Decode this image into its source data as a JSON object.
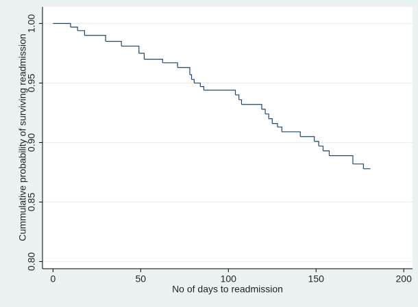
{
  "chart_data": {
    "type": "step",
    "xlabel": "No of days to readmission",
    "ylabel": "Cummulative probability of surviving readmission",
    "x": [
      0,
      10,
      14,
      18,
      30,
      39,
      49,
      52,
      62.5,
      71,
      78,
      79,
      80.5,
      84,
      86,
      104,
      106,
      107.5,
      119,
      121,
      123,
      125,
      128,
      130.5,
      141,
      149,
      151.5,
      154,
      157.5,
      171,
      177,
      181
    ],
    "values": [
      1.0,
      0.997,
      0.994,
      0.99,
      0.985,
      0.981,
      0.975,
      0.97,
      0.967,
      0.963,
      0.957,
      0.953,
      0.95,
      0.947,
      0.944,
      0.94,
      0.936,
      0.932,
      0.928,
      0.924,
      0.92,
      0.916,
      0.913,
      0.909,
      0.905,
      0.901,
      0.897,
      0.893,
      0.889,
      0.882,
      0.878,
      0.878
    ],
    "color": "#1a476f",
    "xlim": [
      -6,
      205
    ],
    "xticks": [
      0,
      50,
      100,
      150,
      200
    ],
    "ylim": [
      0.794,
      1.014
    ],
    "yticks": [
      {
        "value": 0.8,
        "label": "0.80"
      },
      {
        "value": 0.85,
        "label": "0.85"
      },
      {
        "value": 0.9,
        "label": "0.90"
      },
      {
        "value": 0.95,
        "label": "0.95"
      },
      {
        "value": 1.0,
        "label": "1.00"
      }
    ],
    "grid": true
  }
}
